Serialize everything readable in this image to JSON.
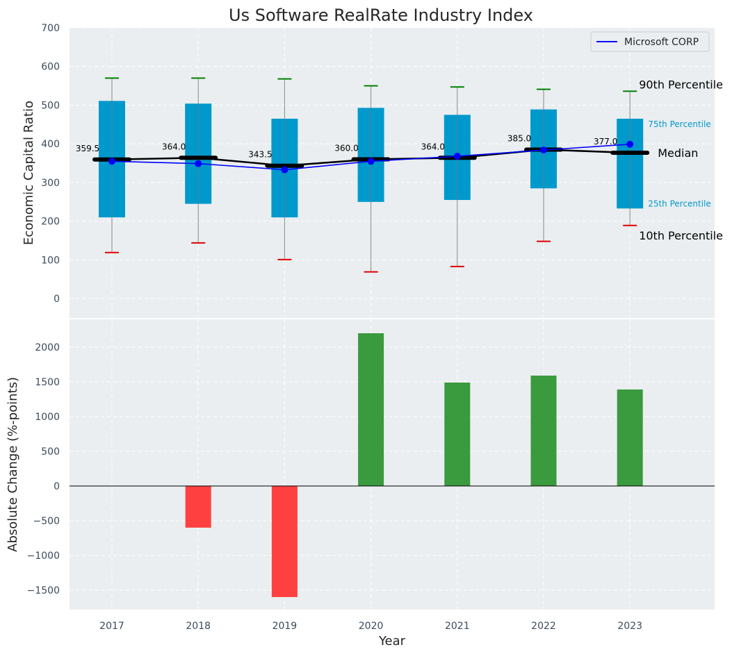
{
  "chart_data": {
    "type": "box+line+bar",
    "title": "Us Software RealRate Industry Index",
    "categories": [
      "2017",
      "2018",
      "2019",
      "2020",
      "2021",
      "2022",
      "2023"
    ],
    "xlabel": "Year",
    "colors": {
      "plot_bg": "#eaeef0",
      "box": "#0099cc",
      "whisker": "#888888",
      "p90_cap": "#008000",
      "p10_cap": "#e00000",
      "median": "#000000",
      "company_line": "#0000ff",
      "bar_positive": "#3a9a3e",
      "bar_negative": "#ff4040"
    },
    "top": {
      "ylabel": "Economic Capital Ratio",
      "ylim": [
        -50,
        700
      ],
      "yticks": [
        "0",
        "100",
        "200",
        "300",
        "400",
        "500",
        "600",
        "700"
      ],
      "p10": [
        119,
        144,
        101,
        69,
        83,
        148,
        189
      ],
      "p25": [
        210,
        245,
        210,
        250,
        255,
        285,
        233
      ],
      "median": [
        359.5,
        364.0,
        343.5,
        360.0,
        364.0,
        385.0,
        377.0
      ],
      "median_labels": [
        "359.5",
        "364.0",
        "343.5",
        "360.0",
        "364.0",
        "385.0",
        "377.0"
      ],
      "p75": [
        511,
        504,
        465,
        493,
        475,
        489,
        465
      ],
      "p90": [
        570,
        570,
        568,
        550,
        547,
        541,
        536
      ],
      "company_name": "Microsoft CORP",
      "company_values": [
        355,
        349,
        333,
        355,
        368,
        384,
        399
      ],
      "legend_position": "top-right",
      "annotations": {
        "p90": "90th Percentile",
        "p75": "75th Percentile",
        "median": "Median",
        "p25": "25th Percentile",
        "p10": "10th Percentile"
      }
    },
    "bottom": {
      "type": "bar",
      "ylabel": "Absolute Change (%-points)",
      "ylim": [
        -1780,
        2400
      ],
      "yticks": [
        "−1500",
        "−1000",
        "−500",
        "0",
        "500",
        "1000",
        "1500",
        "2000"
      ],
      "values": [
        0,
        -600,
        -1600,
        2200,
        1490,
        1590,
        1390
      ]
    }
  }
}
